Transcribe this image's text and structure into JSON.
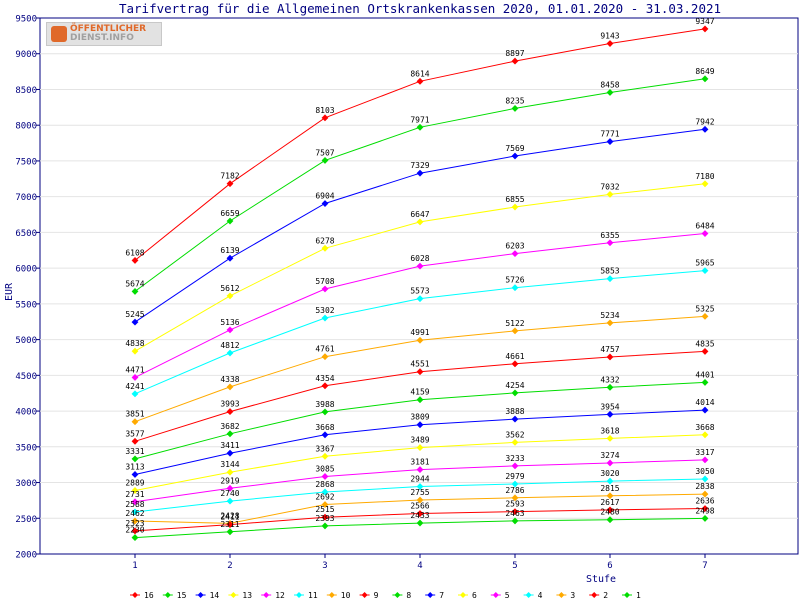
{
  "logo": {
    "line1": "ÖFFENTLICHER",
    "line2": "DIENST.INFO"
  },
  "chart_data": {
    "type": "line",
    "title": "Tarifvertrag für die Allgemeinen Ortskrankenkassen 2020, 01.01.2020 - 31.03.2021",
    "xlabel": "Stufe",
    "ylabel": "EUR",
    "categories": [
      "1",
      "2",
      "3",
      "4",
      "5",
      "6",
      "7"
    ],
    "ylim": [
      2000,
      9500
    ],
    "yticks": [
      2000,
      2500,
      3000,
      3500,
      4000,
      4500,
      5000,
      5500,
      6000,
      6500,
      7000,
      7500,
      8000,
      8500,
      9000,
      9500
    ],
    "grid": "horizontal",
    "legend_position": "bottom",
    "series": [
      {
        "name": "16",
        "color": "#ff0000",
        "values": [
          6108,
          7182,
          8103,
          8614,
          8897,
          9143,
          9347
        ]
      },
      {
        "name": "15",
        "color": "#00dd00",
        "values": [
          5674,
          6659,
          7507,
          7971,
          8235,
          8458,
          8649
        ]
      },
      {
        "name": "14",
        "color": "#0000ff",
        "values": [
          5245,
          6139,
          6904,
          7329,
          7569,
          7771,
          7942
        ]
      },
      {
        "name": "13",
        "color": "#ffff00",
        "values": [
          4838,
          5612,
          6278,
          6647,
          6855,
          7032,
          7180
        ]
      },
      {
        "name": "12",
        "color": "#ff00ff",
        "values": [
          4471,
          5136,
          5708,
          6028,
          6203,
          6355,
          6484
        ]
      },
      {
        "name": "11",
        "color": "#00ffff",
        "values": [
          4241,
          4812,
          5302,
          5573,
          5726,
          5853,
          5965
        ]
      },
      {
        "name": "10",
        "color": "#ffaa00",
        "values": [
          3851,
          4338,
          4761,
          4991,
          5122,
          5234,
          5325
        ]
      },
      {
        "name": "9",
        "color": "#ff0000",
        "values": [
          3577,
          3993,
          4354,
          4551,
          4661,
          4757,
          4835
        ]
      },
      {
        "name": "8",
        "color": "#00dd00",
        "values": [
          3331,
          3682,
          3988,
          4159,
          4254,
          4332,
          4401
        ]
      },
      {
        "name": "7",
        "color": "#0000ff",
        "values": [
          3113,
          3411,
          3668,
          3809,
          3888,
          3954,
          4014
        ]
      },
      {
        "name": "6",
        "color": "#ffff00",
        "values": [
          2889,
          3144,
          3367,
          3489,
          3562,
          3618,
          3668
        ]
      },
      {
        "name": "5",
        "color": "#ff00ff",
        "values": [
          2731,
          2919,
          3085,
          3181,
          3233,
          3274,
          3317
        ]
      },
      {
        "name": "4",
        "color": "#00ffff",
        "values": [
          2588,
          2740,
          2868,
          2944,
          2979,
          3020,
          3050
        ]
      },
      {
        "name": "3",
        "color": "#ffaa00",
        "values": [
          2462,
          2428,
          2692,
          2755,
          2786,
          2815,
          2838
        ]
      },
      {
        "name": "2",
        "color": "#ff0000",
        "values": [
          2323,
          2411,
          2515,
          2566,
          2593,
          2617,
          2636
        ]
      },
      {
        "name": "1",
        "color": "#00dd00",
        "values": [
          2230,
          2311,
          2393,
          2433,
          2463,
          2480,
          2498
        ]
      }
    ]
  }
}
